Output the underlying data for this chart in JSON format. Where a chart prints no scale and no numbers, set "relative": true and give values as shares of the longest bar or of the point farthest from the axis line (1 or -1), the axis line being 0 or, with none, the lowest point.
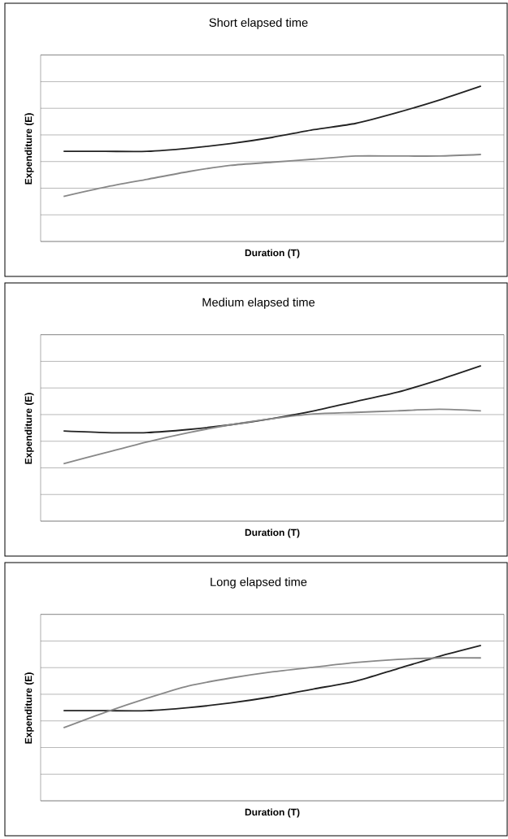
{
  "chart_data": [
    {
      "type": "line",
      "title": "Short elapsed time",
      "xlabel": "Duration (T)",
      "ylabel": "Expenditure (E)",
      "relative": true,
      "grid": "y",
      "categories": [
        null,
        null,
        null,
        null,
        null,
        null,
        null,
        null,
        null,
        null,
        null
      ],
      "series": [
        {
          "color": "#222222",
          "values": [
            0.58,
            0.58,
            0.58,
            0.6,
            0.63,
            0.67,
            0.72,
            0.76,
            0.83,
            0.91,
            1
          ]
        },
        {
          "color": "#888888",
          "values": [
            0.29,
            0.35,
            0.4,
            0.45,
            0.49,
            0.51,
            0.53,
            0.55,
            0.55,
            0.55,
            0.56
          ]
        }
      ]
    },
    {
      "type": "line",
      "title": "Medium elapsed time",
      "xlabel": "Duration (T)",
      "ylabel": "Expenditure (E)",
      "relative": true,
      "grid": "y",
      "categories": [
        null,
        null,
        null,
        null,
        null,
        null,
        null,
        null,
        null,
        null,
        null
      ],
      "series": [
        {
          "color": "#222222",
          "values": [
            0.58,
            0.57,
            0.57,
            0.59,
            0.62,
            0.66,
            0.71,
            0.77,
            0.83,
            0.91,
            1
          ]
        },
        {
          "color": "#888888",
          "values": [
            0.37,
            0.44,
            0.51,
            0.57,
            0.62,
            0.66,
            0.69,
            0.7,
            0.71,
            0.72,
            0.71
          ]
        }
      ]
    },
    {
      "type": "line",
      "title": "Long elapsed time",
      "xlabel": "Duration (T)",
      "ylabel": "Expenditure (E)",
      "relative": true,
      "grid": "y",
      "categories": [
        null,
        null,
        null,
        null,
        null,
        null,
        null,
        null,
        null,
        null,
        null
      ],
      "series": [
        {
          "color": "#222222",
          "values": [
            0.58,
            0.58,
            0.58,
            0.6,
            0.63,
            0.67,
            0.72,
            0.77,
            0.85,
            0.93,
            1
          ]
        },
        {
          "color": "#888888",
          "values": [
            0.47,
            0.57,
            0.66,
            0.74,
            0.79,
            0.83,
            0.86,
            0.89,
            0.91,
            0.92,
            0.92
          ]
        }
      ]
    }
  ]
}
